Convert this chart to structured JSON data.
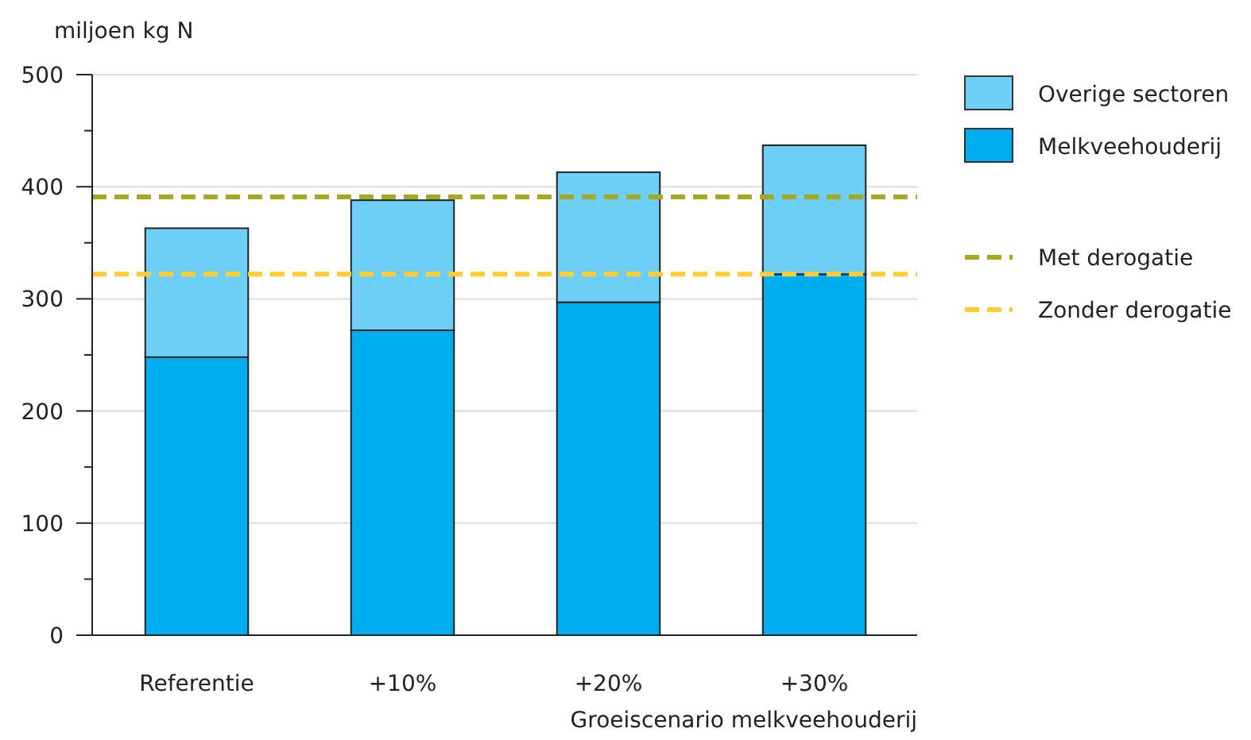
{
  "chart_data": {
    "type": "bar",
    "stacked": true,
    "ylabel": "miljoen kg N",
    "xlabel": "Groeiscenario melkveehouderij",
    "categories": [
      "Referentie",
      "+10%",
      "+20%",
      "+30%"
    ],
    "series": [
      {
        "name": "Melkveehouderij",
        "color": "#00aeef",
        "values": [
          248,
          272,
          297,
          322
        ]
      },
      {
        "name": "Overige sectoren",
        "color": "#6dcff6",
        "values": [
          115,
          116,
          116,
          115
        ]
      }
    ],
    "ylim": [
      0,
      500
    ],
    "yticks": [
      0,
      {
        "value": 50,
        "label": null
      },
      100,
      {
        "value": 150,
        "label": null
      },
      200,
      {
        "value": 250,
        "label": null
      },
      300,
      {
        "value": 350,
        "label": null
      },
      400,
      {
        "value": 450,
        "label": null
      },
      500
    ],
    "grid": "y",
    "legend": "top right",
    "ref_lines": [
      {
        "axis": "y",
        "value": 391,
        "label": "Met derogatie",
        "color": "#a8a81e",
        "line_style": "dashed"
      },
      {
        "axis": "y",
        "value": 322,
        "label": "Zonder derogatie",
        "color": "#ffcc33",
        "line_style": "dashed"
      }
    ]
  }
}
